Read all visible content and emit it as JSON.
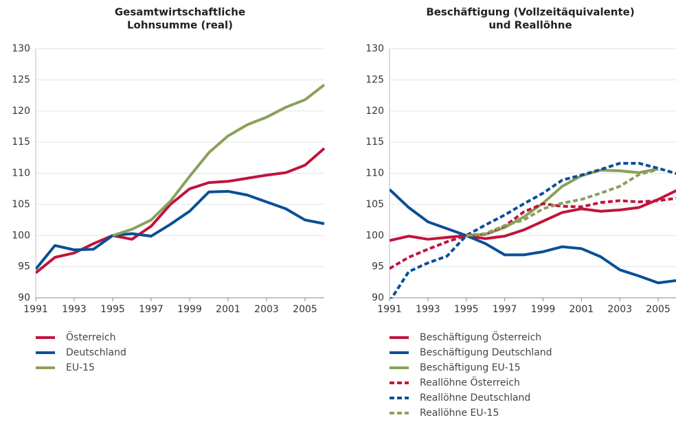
{
  "chart_data": [
    {
      "type": "line",
      "title": [
        "Gesamtwirtschaftliche",
        "Lohnsumme (real)"
      ],
      "x": [
        1991,
        1992,
        1993,
        1994,
        1995,
        1996,
        1997,
        1998,
        1999,
        2000,
        2001,
        2002,
        2003,
        2004,
        2005,
        2006
      ],
      "xlim": [
        1991,
        2006
      ],
      "xticks": [
        1991,
        1993,
        1995,
        1997,
        1999,
        2001,
        2003,
        2005
      ],
      "ylim": [
        90,
        130
      ],
      "yticks": [
        90,
        95,
        100,
        105,
        110,
        115,
        120,
        125,
        130
      ],
      "series": [
        {
          "name": "Österreich",
          "color": "#c0143c",
          "dashed": false,
          "values": [
            94,
            96.5,
            97.2,
            98.7,
            100,
            99.4,
            101.5,
            105,
            107.5,
            108.5,
            108.7,
            109.2,
            109.7,
            110.1,
            111.3,
            114
          ]
        },
        {
          "name": "Deutschland",
          "color": "#0a4f96",
          "dashed": false,
          "values": [
            94.6,
            98.4,
            97.7,
            97.8,
            100,
            100.3,
            99.9,
            101.8,
            103.9,
            107,
            107.1,
            106.5,
            105.4,
            104.3,
            102.5,
            101.9
          ]
        },
        {
          "name": "EU-15",
          "color": "#8aa05a",
          "dashed": false,
          "values": [
            null,
            null,
            null,
            null,
            100,
            101,
            102.5,
            105.5,
            109.5,
            113.3,
            116,
            117.8,
            119,
            120.6,
            121.8,
            124.2
          ]
        }
      ]
    },
    {
      "type": "line",
      "title": [
        "Beschäftigung (Vollzeitäquivalente)",
        "und Reallöhne"
      ],
      "x": [
        1991,
        1992,
        1993,
        1994,
        1995,
        1996,
        1997,
        1998,
        1999,
        2000,
        2001,
        2002,
        2003,
        2004,
        2005,
        2006
      ],
      "xlim": [
        1991,
        2006
      ],
      "xticks": [
        1991,
        1993,
        1995,
        1997,
        1999,
        2001,
        2003,
        2005
      ],
      "ylim": [
        90,
        130
      ],
      "yticks": [
        90,
        95,
        100,
        105,
        110,
        115,
        120,
        125,
        130
      ],
      "series": [
        {
          "name": "Beschäftigung Österreich",
          "color": "#c0143c",
          "dashed": false,
          "values": [
            99.2,
            99.9,
            99.4,
            99.7,
            100,
            99.5,
            99.9,
            100.9,
            102.3,
            103.7,
            104.3,
            103.9,
            104.1,
            104.5,
            105.8,
            107.3
          ]
        },
        {
          "name": "Beschäftigung Deutschland",
          "color": "#0a4f96",
          "dashed": false,
          "values": [
            107.4,
            104.5,
            102.2,
            101.1,
            100,
            98.7,
            96.9,
            96.9,
            97.4,
            98.2,
            97.9,
            96.6,
            94.5,
            93.5,
            92.4,
            92.8
          ]
        },
        {
          "name": "Beschäftigung EU-15",
          "color": "#8aa05a",
          "dashed": false,
          "values": [
            null,
            null,
            null,
            null,
            100,
            100.2,
            101.3,
            103,
            105.2,
            107.9,
            109.6,
            110.5,
            110.4,
            110.1,
            110.7,
            null
          ]
        },
        {
          "name": "Reallöhne Österreich",
          "color": "#c0143c",
          "dashed": true,
          "values": [
            94.7,
            96.5,
            97.8,
            99,
            100,
            100.2,
            101.5,
            103.8,
            105.1,
            104.7,
            104.6,
            105.3,
            105.6,
            105.4,
            105.6,
            106
          ]
        },
        {
          "name": "Reallöhne Deutschland",
          "color": "#0a4f96",
          "dashed": true,
          "values": [
            89.4,
            94.2,
            95.6,
            96.7,
            100,
            101.7,
            103.3,
            105.1,
            106.8,
            108.9,
            109.7,
            110.6,
            111.6,
            111.6,
            110.8,
            109.9
          ]
        },
        {
          "name": "Reallöhne EU-15",
          "color": "#8aa05a",
          "dashed": true,
          "values": [
            null,
            null,
            null,
            null,
            100,
            100.3,
            101.6,
            102.5,
            104.3,
            105.2,
            105.8,
            106.8,
            107.9,
            109.8,
            110.6,
            null
          ]
        }
      ]
    }
  ]
}
